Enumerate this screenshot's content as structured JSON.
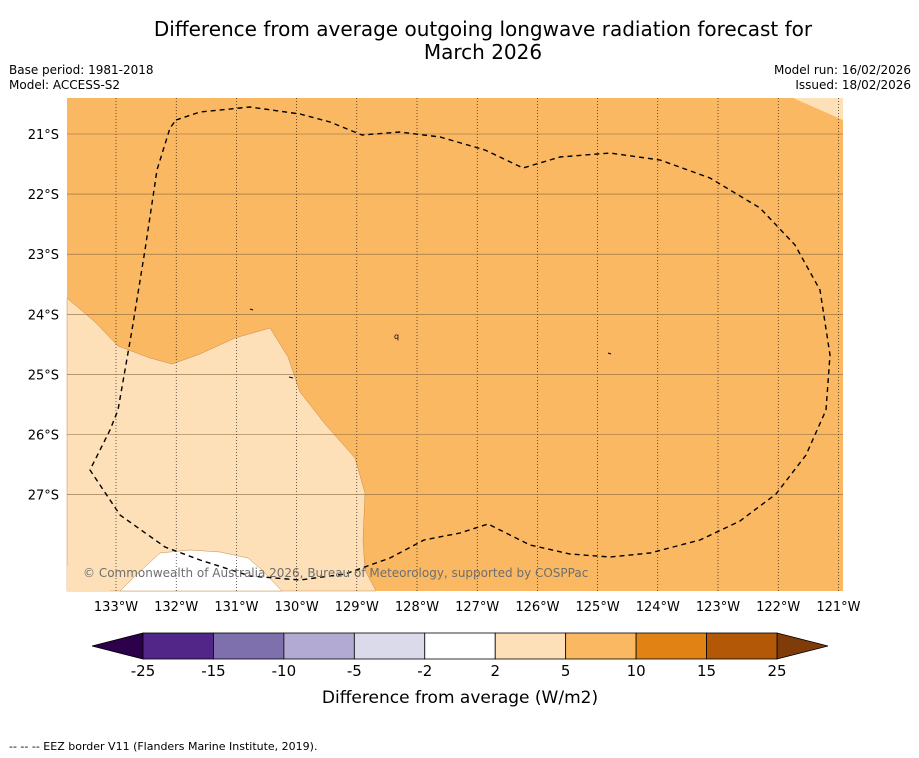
{
  "title": {
    "line1": "Difference from average outgoing longwave radiation forecast for",
    "line2": "March 2026"
  },
  "meta": {
    "base_period": "Base period: 1981-2018",
    "model": "Model: ACCESS-S2",
    "model_run": "Model run: 16/02/2026",
    "issued": "Issued: 18/02/2026"
  },
  "map": {
    "lon_labels": [
      "133°W",
      "132°W",
      "131°W",
      "130°W",
      "129°W",
      "128°W",
      "127°W",
      "126°W",
      "125°W",
      "124°W",
      "123°W",
      "122°W",
      "121°W"
    ],
    "lat_labels": [
      "21°S",
      "22°S",
      "23°S",
      "24°S",
      "25°S",
      "26°S",
      "27°S"
    ],
    "copyright": "© Commonwealth of Australia 2026, Bureau of Meteorology, supported by COSPPac",
    "region_colors": {
      "positive_5_10": "#fbb862",
      "positive_2_5": "#fde0b8",
      "neutral": "#ffffff"
    },
    "contour_label": "q"
  },
  "colorbar": {
    "labels": [
      "-25",
      "-15",
      "-10",
      "-5",
      "-2",
      "2",
      "5",
      "10",
      "15",
      "25"
    ],
    "colors": [
      "#522689",
      "#7e6fad",
      "#b2aad3",
      "#dadaeb",
      "#ffffff",
      "#fde0b8",
      "#fbb862",
      "#e08214",
      "#b35807"
    ],
    "under_color": "#2d004b",
    "over_color": "#7f3b08",
    "label": "Difference from average (W/m2)"
  },
  "footer": {
    "legend_text": "--  --  -- EEZ border V11 (Flanders Marine Institute, 2019)."
  }
}
